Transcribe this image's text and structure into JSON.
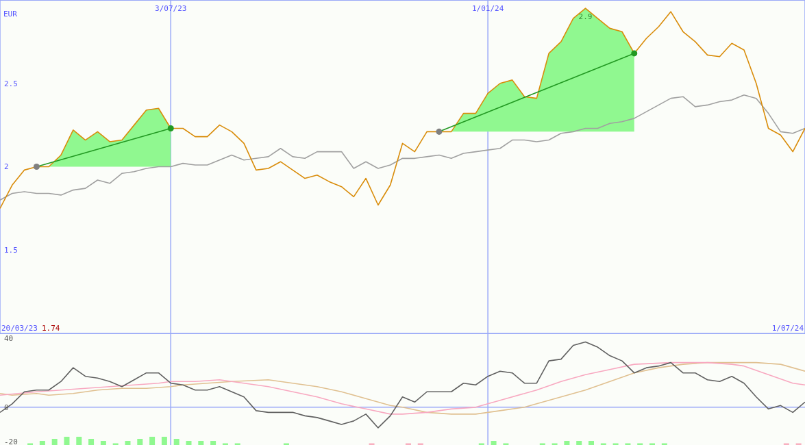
{
  "chart_data": [
    {
      "type": "line",
      "ylabel": "EUR",
      "x": [
        "2023-03-27",
        "2023-04-03",
        "2023-04-10",
        "2023-04-17",
        "2023-04-24",
        "2023-05-01",
        "2023-05-08",
        "2023-05-15",
        "2023-05-22",
        "2023-05-29",
        "2023-06-05",
        "2023-06-12",
        "2023-06-19",
        "2023-06-26",
        "2023-07-03",
        "2023-07-10",
        "2023-07-17",
        "2023-07-24",
        "2023-07-31",
        "2023-08-07",
        "2023-08-14",
        "2023-08-21",
        "2023-08-28",
        "2023-09-04",
        "2023-09-11",
        "2023-09-18",
        "2023-09-25",
        "2023-10-02",
        "2023-10-09",
        "2023-10-16",
        "2023-10-23",
        "2023-10-30",
        "2023-11-06",
        "2023-11-13",
        "2023-11-20",
        "2023-11-27",
        "2023-12-04",
        "2023-12-11",
        "2023-12-18",
        "2023-12-25",
        "2024-01-01",
        "2024-01-08",
        "2024-01-15",
        "2024-01-22",
        "2024-01-29",
        "2024-02-05",
        "2024-02-12",
        "2024-02-19",
        "2024-02-26",
        "2024-03-04",
        "2024-03-11",
        "2024-03-18",
        "2024-03-25",
        "2024-04-01",
        "2024-04-08",
        "2024-04-15",
        "2024-04-22",
        "2024-04-29",
        "2024-05-06",
        "2024-05-13",
        "2024-05-20",
        "2024-05-27",
        "2024-06-03",
        "2024-06-10",
        "2024-06-17",
        "2024-06-24",
        "2024-07-01"
      ],
      "series": [
        {
          "color": "#a0a0a0",
          "values": [
            1.8,
            1.84,
            1.85,
            1.84,
            1.84,
            1.83,
            1.86,
            1.87,
            1.92,
            1.9,
            1.96,
            1.97,
            1.99,
            2.0,
            2.0,
            2.02,
            2.01,
            2.01,
            2.04,
            2.07,
            2.04,
            2.05,
            2.06,
            2.11,
            2.06,
            2.05,
            2.09,
            2.09,
            2.09,
            1.99,
            2.03,
            1.99,
            2.01,
            2.05,
            2.05,
            2.06,
            2.07,
            2.05,
            2.08,
            2.09,
            2.1,
            2.11,
            2.16,
            2.16,
            2.15,
            2.16,
            2.2,
            2.21,
            2.23,
            2.23,
            2.26,
            2.27,
            2.29,
            2.33,
            2.37,
            2.41,
            2.42,
            2.36,
            2.37,
            2.39,
            2.4,
            2.43,
            2.41,
            2.32,
            2.21,
            2.2,
            2.23
          ]
        },
        {
          "color": "#d98c0a",
          "values": [
            1.75,
            1.89,
            1.98,
            2.0,
            2.0,
            2.07,
            2.22,
            2.16,
            2.21,
            2.15,
            2.16,
            2.25,
            2.34,
            2.35,
            2.23,
            2.23,
            2.18,
            2.18,
            2.25,
            2.21,
            2.14,
            1.98,
            1.99,
            2.03,
            1.98,
            1.93,
            1.95,
            1.91,
            1.88,
            1.82,
            1.93,
            1.77,
            1.89,
            2.14,
            2.09,
            2.21,
            2.21,
            2.21,
            2.32,
            2.32,
            2.44,
            2.5,
            2.52,
            2.42,
            2.41,
            2.68,
            2.75,
            2.89,
            2.95,
            2.89,
            2.83,
            2.81,
            2.68,
            2.77,
            2.84,
            2.93,
            2.81,
            2.75,
            2.67,
            2.66,
            2.74,
            2.7,
            2.5,
            2.23,
            2.19,
            2.09,
            2.23
          ],
          "lower": [
            null,
            null,
            null,
            2.0,
            2.0,
            2.0,
            2.0,
            2.0,
            2.0,
            2.0,
            2.0,
            2.0,
            2.0,
            2.0,
            2.0,
            null,
            null,
            null,
            null,
            null,
            null,
            null,
            null,
            null,
            null,
            null,
            null,
            null,
            null,
            null,
            null,
            null,
            null,
            null,
            null,
            null,
            2.21,
            2.21,
            2.21,
            2.21,
            2.21,
            2.21,
            2.21,
            2.21,
            2.21,
            2.21,
            2.21,
            2.21,
            2.21,
            2.21,
            2.21,
            2.21,
            2.21,
            null,
            null,
            null,
            null,
            null,
            null,
            null,
            null,
            null,
            null,
            null,
            null,
            null,
            null
          ],
          "upper": [
            null,
            null,
            null,
            2.0,
            2.0,
            2.07,
            2.22,
            2.16,
            2.21,
            2.15,
            2.16,
            2.25,
            2.34,
            2.35,
            2.23,
            null,
            null,
            null,
            null,
            null,
            null,
            null,
            null,
            null,
            null,
            null,
            null,
            null,
            null,
            null,
            null,
            null,
            null,
            null,
            null,
            null,
            2.21,
            2.21,
            2.32,
            2.32,
            2.44,
            2.5,
            2.52,
            2.42,
            2.41,
            2.68,
            2.75,
            2.89,
            2.95,
            2.89,
            2.83,
            2.81,
            2.68,
            null,
            null,
            null,
            null,
            null,
            null,
            null,
            null,
            null,
            null,
            null,
            null,
            null,
            null
          ]
        },
        {
          "color": "#229922",
          "x": [
            "2023-04-17",
            "2023-07-03"
          ],
          "values": [
            2.0,
            2.23
          ]
        },
        {
          "color": "#229922",
          "x": [
            "2023-12-04",
            "2024-03-25"
          ],
          "values": [
            2.21,
            2.68
          ]
        },
        {
          "type": "scatter",
          "color": "#808080",
          "marker": "circle",
          "x": [
            "2023-04-17",
            "2023-12-04"
          ],
          "values": [
            2.0,
            2.21
          ]
        },
        {
          "type": "scatter",
          "color": "#229922",
          "marker": "circle",
          "x": [
            "2023-07-03",
            "2024-03-25"
          ],
          "values": [
            2.23,
            2.68
          ]
        }
      ],
      "xlim": [
        "2023-03-27",
        "2024-07-01"
      ],
      "xticks": [
        {
          "value": "2023-07-03",
          "label": "3/07/23"
        },
        {
          "value": "2024-01-01",
          "label": "1/01/24"
        }
      ],
      "ylim": [
        1,
        3
      ],
      "yticks": [
        1.5,
        2,
        2.5
      ],
      "grid": true,
      "annotations": [
        {
          "text": "2.9",
          "x": "2024-02-26",
          "y": 2.95
        },
        "20/03/23",
        "1.74",
        "1/07/24"
      ]
    },
    {
      "type": "line",
      "x": [
        "2023-03-27",
        "2023-04-03",
        "2023-04-10",
        "2023-04-17",
        "2023-04-24",
        "2023-05-01",
        "2023-05-08",
        "2023-05-15",
        "2023-05-22",
        "2023-05-29",
        "2023-06-05",
        "2023-06-12",
        "2023-06-19",
        "2023-06-26",
        "2023-07-03",
        "2023-07-10",
        "2023-07-17",
        "2023-07-24",
        "2023-07-31",
        "2023-08-07",
        "2023-08-14",
        "2023-08-21",
        "2023-08-28",
        "2023-09-04",
        "2023-09-11",
        "2023-09-18",
        "2023-09-25",
        "2023-10-02",
        "2023-10-09",
        "2023-10-16",
        "2023-10-23",
        "2023-10-30",
        "2023-11-06",
        "2023-11-13",
        "2023-11-20",
        "2023-11-27",
        "2023-12-04",
        "2023-12-11",
        "2023-12-18",
        "2023-12-25",
        "2024-01-01",
        "2024-01-08",
        "2024-01-15",
        "2024-01-22",
        "2024-01-29",
        "2024-02-05",
        "2024-02-12",
        "2024-02-19",
        "2024-02-26",
        "2024-03-04",
        "2024-03-11",
        "2024-03-18",
        "2024-03-25",
        "2024-04-01",
        "2024-04-08",
        "2024-04-15",
        "2024-04-22",
        "2024-04-29",
        "2024-05-06",
        "2024-05-13",
        "2024-05-20",
        "2024-05-27",
        "2024-06-03",
        "2024-06-10",
        "2024-06-17",
        "2024-06-24",
        "2024-07-01"
      ],
      "series": [
        {
          "type": "bar",
          "x": [
            "2023-04-13T12:00",
            "2023-04-20T12:00",
            "2023-04-27T12:00",
            "2023-05-04T12:00",
            "2023-05-11T12:00",
            "2023-05-18T12:00",
            "2023-05-25T12:00",
            "2023-06-01T12:00",
            "2023-06-08T12:00",
            "2023-06-15T12:00",
            "2023-06-22T12:00",
            "2023-06-29T12:00",
            "2023-07-06T12:00",
            "2023-07-13T12:00",
            "2023-07-20T12:00",
            "2023-07-27T12:00",
            "2023-08-03T12:00",
            "2023-08-10T12:00",
            "2023-09-07T12:00",
            "2023-10-26T12:00",
            "2023-11-16T12:00",
            "2023-11-23T12:00",
            "2023-12-28T12:00",
            "2024-01-04T12:00",
            "2024-01-11T12:00",
            "2024-02-01T12:00",
            "2024-02-08T12:00",
            "2024-02-15T12:00",
            "2024-02-22T12:00",
            "2024-02-29T12:00",
            "2024-03-07T12:00",
            "2024-03-14T12:00",
            "2024-03-21T12:00",
            "2024-03-28T12:00",
            "2024-04-04T12:00",
            "2024-04-11T12:00",
            "2024-06-20T12:00",
            "2024-06-27T12:00"
          ],
          "values": [
            1,
            2.4,
            3.6,
            4.8,
            4.8,
            3.6,
            2.4,
            1,
            2.4,
            3.6,
            4.8,
            4.8,
            3.6,
            2.4,
            2.4,
            2.4,
            1,
            1,
            1,
            1,
            1,
            1,
            1,
            2.4,
            1,
            1,
            1,
            2.4,
            2.4,
            2.4,
            1,
            1,
            1,
            1,
            1,
            1,
            1,
            1
          ],
          "base": [
            -22,
            -22,
            -22,
            -22,
            -22,
            -22,
            -22,
            -22,
            -22,
            -22,
            -22,
            -22,
            -22,
            -22,
            -22,
            -22,
            -22,
            -22,
            -22,
            -22,
            -22,
            -22,
            -22,
            -22,
            -22,
            -22,
            -22,
            -22,
            -22,
            -22,
            -22,
            -22,
            -22,
            -22,
            -22,
            -22,
            -22,
            -22
          ],
          "colors": [
            "#90f890",
            "#90f890",
            "#90f890",
            "#90f890",
            "#90f890",
            "#90f890",
            "#90f890",
            "#90f890",
            "#90f890",
            "#90f890",
            "#90f890",
            "#90f890",
            "#90f890",
            "#90f890",
            "#90f890",
            "#90f890",
            "#90f890",
            "#90f890",
            "#90f890",
            "#f8b0c0",
            "#f8b0c0",
            "#f8b0c0",
            "#90f890",
            "#90f890",
            "#90f890",
            "#90f890",
            "#90f890",
            "#90f890",
            "#90f890",
            "#90f890",
            "#90f890",
            "#90f890",
            "#90f890",
            "#90f890",
            "#90f890",
            "#90f890",
            "#f8b0c0",
            "#f8b0c0"
          ]
        },
        {
          "color": "#e0c090",
          "x": [
            "2023-03-27",
            "2023-04-03",
            "2023-04-17",
            "2023-04-24",
            "2023-05-08",
            "2023-05-22",
            "2023-06-05",
            "2023-06-19",
            "2023-07-03",
            "2023-07-10",
            "2023-07-24",
            "2023-08-07",
            "2023-08-28",
            "2023-09-11",
            "2023-09-25",
            "2023-10-09",
            "2023-10-23",
            "2023-11-06",
            "2023-11-13",
            "2023-11-27",
            "2023-12-11",
            "2023-12-25",
            "2024-01-08",
            "2024-01-22",
            "2024-02-12",
            "2024-02-26",
            "2024-03-11",
            "2024-03-25",
            "2024-04-08",
            "2024-04-22",
            "2024-05-06",
            "2024-05-20",
            "2024-06-03",
            "2024-06-17",
            "2024-07-01"
          ],
          "values": [
            8,
            7,
            8,
            7,
            8,
            10,
            11,
            11,
            12,
            13,
            14,
            15,
            16,
            14,
            12,
            9,
            5,
            1,
            0,
            -3,
            -4,
            -4,
            -2,
            0,
            6,
            10,
            15,
            20,
            23,
            25,
            26,
            26,
            26,
            25,
            21
          ]
        },
        {
          "color": "#f8a8c0",
          "x": [
            "2023-03-27",
            "2023-04-17",
            "2023-05-01",
            "2023-05-15",
            "2023-05-29",
            "2023-06-12",
            "2023-06-26",
            "2023-07-03",
            "2023-07-17",
            "2023-07-31",
            "2023-08-14",
            "2023-08-28",
            "2023-09-11",
            "2023-09-25",
            "2023-10-09",
            "2023-10-23",
            "2023-11-06",
            "2023-11-13",
            "2023-11-27",
            "2023-12-11",
            "2023-12-25",
            "2024-01-08",
            "2024-01-29",
            "2024-02-12",
            "2024-02-26",
            "2024-03-11",
            "2024-03-25",
            "2024-04-15",
            "2024-04-29",
            "2024-05-06",
            "2024-05-20",
            "2024-05-27",
            "2024-06-10",
            "2024-06-24",
            "2024-07-01"
          ],
          "values": [
            7,
            9,
            10,
            11,
            12,
            13,
            14,
            15,
            15,
            16,
            14,
            12,
            9,
            6,
            2,
            -1,
            -4,
            -4,
            -3,
            -1,
            0,
            4,
            10,
            15,
            19,
            22,
            25,
            26,
            26,
            26,
            25,
            24,
            19,
            14,
            13
          ]
        },
        {
          "color": "#606060",
          "values": [
            -3,
            2,
            9,
            10,
            10,
            15,
            23,
            18,
            17,
            15,
            12,
            16,
            20,
            20,
            14,
            13,
            10,
            10,
            12,
            9,
            6,
            -2,
            -3,
            -3,
            -3,
            -5,
            -6,
            -8,
            -10,
            -8,
            -4,
            -12,
            -5,
            6,
            3,
            9,
            9,
            9,
            14,
            13,
            18,
            21,
            20,
            14,
            14,
            27,
            28,
            36,
            38,
            35,
            30,
            27,
            20,
            23,
            24,
            26,
            20,
            20,
            16,
            15,
            18,
            14,
            6,
            -1,
            1,
            -3,
            3
          ]
        }
      ],
      "xlim": [
        "2023-03-27",
        "2024-07-01"
      ],
      "ylim": [
        -22,
        43
      ],
      "yticks": [
        -20,
        0,
        40
      ],
      "tick_labels": "y",
      "ref_lines": [
        {
          "axis": "x",
          "value": "2023-07-03",
          "color": "#99a8f8"
        },
        {
          "axis": "x",
          "value": "2024-01-01",
          "color": "#99a8f8"
        },
        {
          "axis": "y",
          "value": 0,
          "color": "#99a8f8"
        }
      ]
    }
  ]
}
